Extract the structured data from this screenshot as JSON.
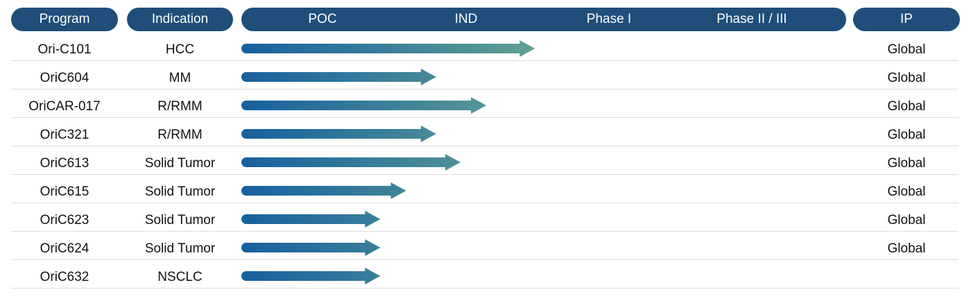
{
  "header": {
    "program_label": "Program",
    "indication_label": "Indication",
    "ip_label": "IP"
  },
  "colors": {
    "header_pill": "#1f4e7a",
    "arrow_start": "#17609f",
    "arrow_end": "#6aa992",
    "divider": "#dcdcdc"
  },
  "chart_data": {
    "type": "bar",
    "orientation": "horizontal",
    "stages": [
      "POC",
      "IND",
      "Phase I",
      "Phase II / III"
    ],
    "columns": [
      "Program",
      "Indication",
      "IP"
    ],
    "rows": [
      {
        "program": "Ori-C101",
        "indication": "HCC",
        "ip": "Global",
        "progress": 2.05
      },
      {
        "program": "OriC604",
        "indication": "MM",
        "ip": "Global",
        "progress": 1.36
      },
      {
        "program": "OriCAR-017",
        "indication": "R/RMM",
        "ip": "Global",
        "progress": 1.71
      },
      {
        "program": "OriC321",
        "indication": "R/RMM",
        "ip": "Global",
        "progress": 1.36
      },
      {
        "program": "OriC613",
        "indication": "Solid Tumor",
        "ip": "Global",
        "progress": 1.53
      },
      {
        "program": "OriC615",
        "indication": "Solid Tumor",
        "ip": "Global",
        "progress": 1.15
      },
      {
        "program": "OriC623",
        "indication": "Solid Tumor",
        "ip": "Global",
        "progress": 0.97
      },
      {
        "program": "OriC624",
        "indication": "Solid Tumor",
        "ip": "Global",
        "progress": 0.97
      },
      {
        "program": "OriC632",
        "indication": "NSCLC",
        "ip": "",
        "progress": 0.97
      }
    ]
  }
}
